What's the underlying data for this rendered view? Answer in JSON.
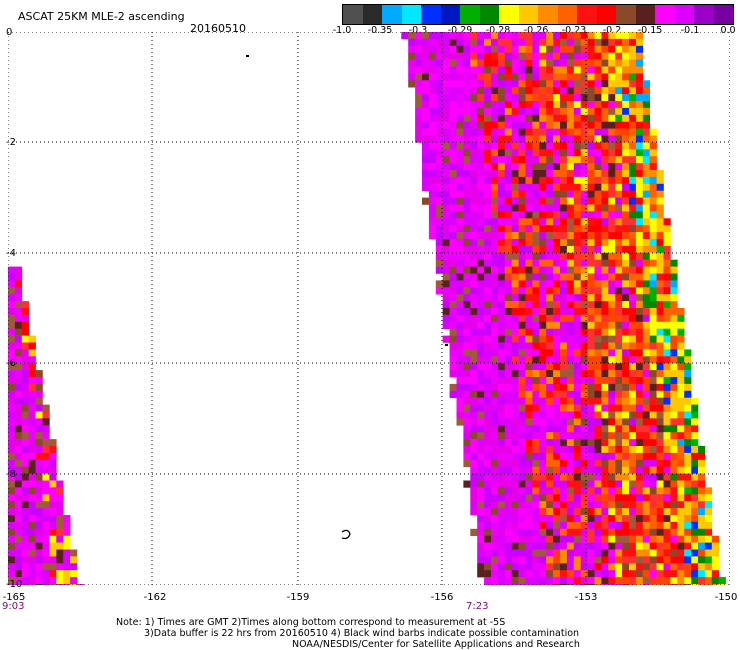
{
  "header": {
    "title": "ASCAT 25KM MLE-2 ascending",
    "date": "20160510"
  },
  "colorbar": {
    "colors": [
      "#505050",
      "#2a2a2a",
      "#00aaff",
      "#00e8ff",
      "#0030ff",
      "#0018c0",
      "#00b000",
      "#008800",
      "#ffff00",
      "#ffc800",
      "#ff8c00",
      "#ff6000",
      "#ff1010",
      "#ff0000",
      "#8a4a2a",
      "#5a2020",
      "#ff00ff",
      "#dd00ff",
      "#9a00c8",
      "#7800a0"
    ],
    "labels": [
      "-1.0",
      "-0.35",
      "-0.3",
      "-0.29",
      "-0.28",
      "-0.26",
      "-0.23",
      "-0.2",
      "-0.15",
      "-0.1",
      "0.0"
    ]
  },
  "axes": {
    "y_ticks": [
      "0",
      "-2",
      "-4",
      "-6",
      "-8",
      "-10"
    ],
    "x_ticks": [
      "-165",
      "-162",
      "-159",
      "-156",
      "-153",
      "-150"
    ],
    "x_range": [
      -165,
      -150
    ],
    "y_range": [
      -10,
      0
    ]
  },
  "swath_times": [
    "9:03",
    "7:23"
  ],
  "notes": [
    "Note: 1) Times are GMT 2)Times along bottom correspond to measurement at -5S",
    "3)Data buffer is 22 hrs from 20160510 4) Black wind barbs indicate possible contamination",
    "NOAA/NESDIS/Center for Satellite Applications and Research"
  ]
}
